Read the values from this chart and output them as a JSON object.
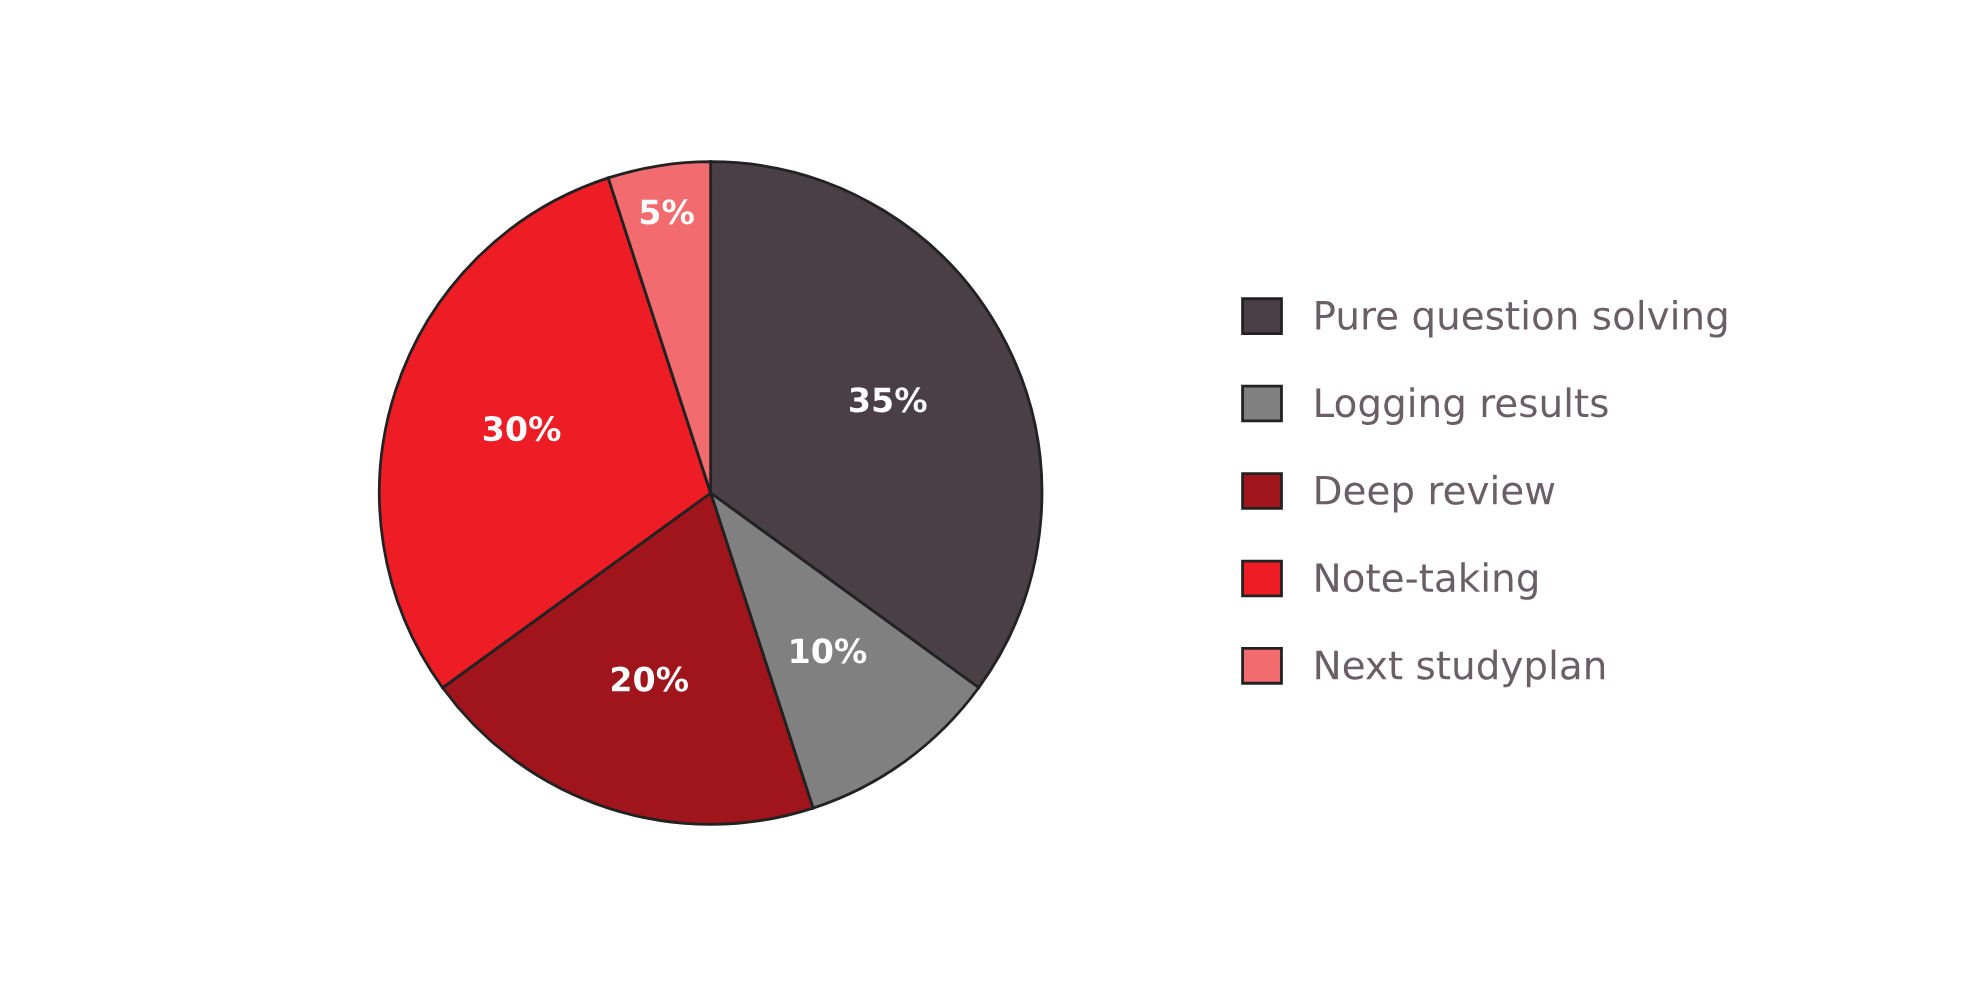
{
  "chart_data": {
    "type": "pie",
    "categories": [
      "Pure question solving",
      "Logging results",
      "Deep review",
      "Note-taking",
      "Next studyplan"
    ],
    "values": [
      35,
      10,
      20,
      30,
      5
    ],
    "colors": [
      "#4a3f45",
      "#808080",
      "#a0151b",
      "#ee1c24",
      "#f26b6f"
    ],
    "value_labels": [
      "35%",
      "10%",
      "20%",
      "30%",
      "5%"
    ],
    "legend": "right"
  }
}
